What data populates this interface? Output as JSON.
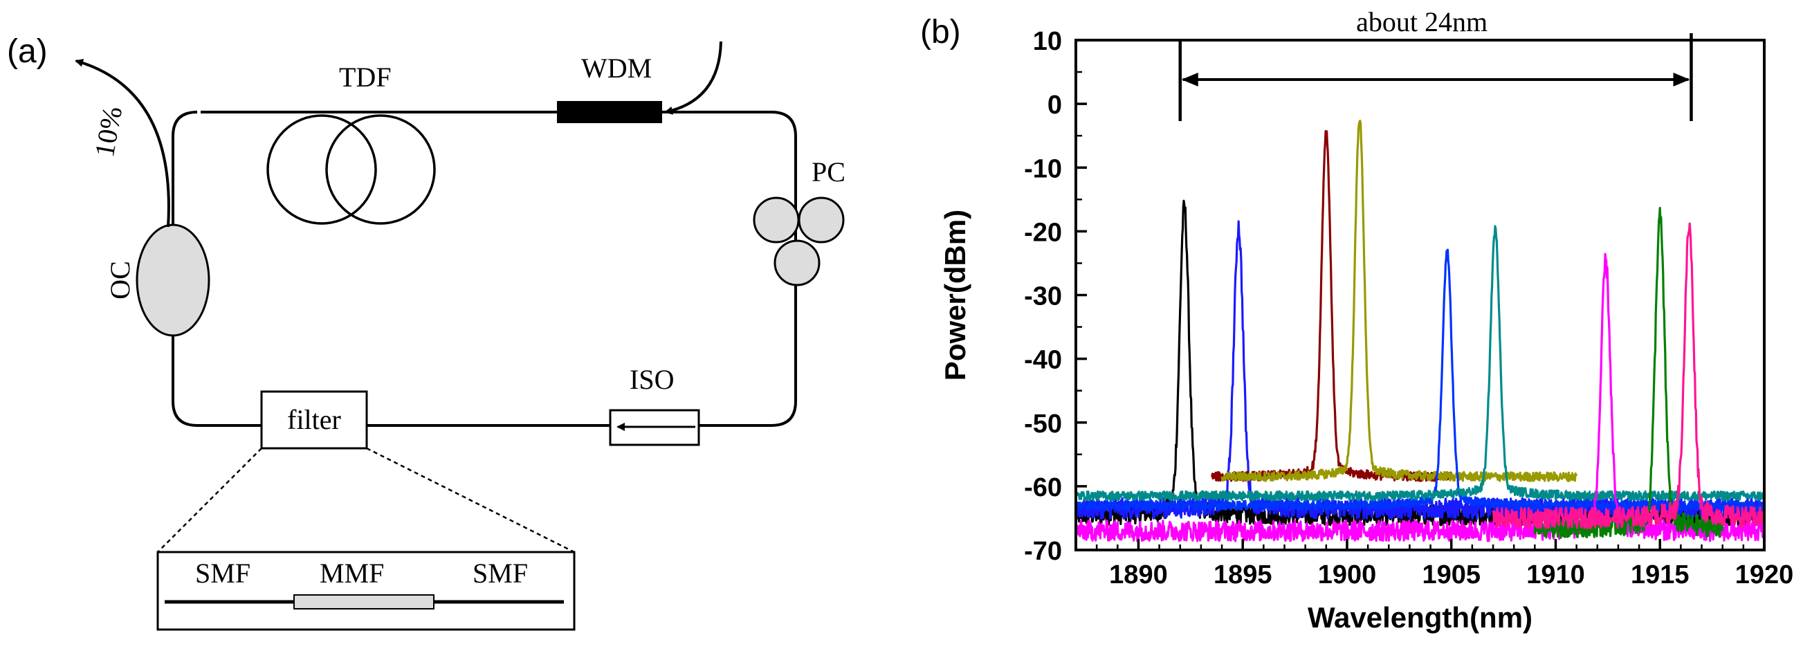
{
  "panel_a": {
    "tag": "(a)",
    "labels": {
      "tdf": "TDF",
      "wdm": "WDM",
      "pc": "PC",
      "oc": "OC",
      "output": "10%",
      "iso": "ISO",
      "filter": "filter",
      "smf_left": "SMF",
      "mmf": "MMF",
      "smf_right": "SMF"
    }
  },
  "panel_b": {
    "tag": "(b)",
    "annotation": "about 24nm"
  },
  "chart_data": {
    "type": "line",
    "title": "",
    "xlabel": "Wavelength(nm)",
    "ylabel": "Power(dBm)",
    "xlim": [
      1887,
      1920
    ],
    "ylim": [
      -70,
      10
    ],
    "xticks": [
      1890,
      1895,
      1900,
      1905,
      1910,
      1915,
      1920
    ],
    "yticks": [
      10,
      0,
      -10,
      -20,
      -30,
      -40,
      -50,
      -60,
      -70
    ],
    "grid": false,
    "annotation_span": [
      1892,
      1916.5
    ],
    "series": [
      {
        "color": "#000000",
        "peak_x": 1892.2,
        "peak_y": -18,
        "baseline": -64.5,
        "range": [
          1887,
          1920
        ]
      },
      {
        "color": "#1a1aff",
        "peak_x": 1894.8,
        "peak_y": -21,
        "baseline": -63.5,
        "range": [
          1887,
          1920
        ]
      },
      {
        "color": "#8b0000",
        "peak_x": 1899.0,
        "peak_y": -6,
        "baseline": -58.5,
        "range": [
          1893.5,
          1905
        ]
      },
      {
        "color": "#999900",
        "peak_x": 1900.6,
        "peak_y": -4,
        "baseline": -58.5,
        "range": [
          1894,
          1911
        ]
      },
      {
        "color": "#0033ff",
        "peak_x": 1904.8,
        "peak_y": -25,
        "baseline": -63,
        "range": [
          1887,
          1920
        ]
      },
      {
        "color": "#008b8b",
        "peak_x": 1907.1,
        "peak_y": -21.5,
        "baseline": -61.5,
        "range": [
          1887,
          1920
        ]
      },
      {
        "color": "#ff00ff",
        "peak_x": 1912.4,
        "peak_y": -26.5,
        "baseline": -67,
        "range": [
          1887,
          1920
        ]
      },
      {
        "color": "#008000",
        "peak_x": 1915.0,
        "peak_y": -19.5,
        "baseline": -66.5,
        "range": [
          1909,
          1918
        ]
      },
      {
        "color": "#ff1493",
        "peak_x": 1916.4,
        "peak_y": -21,
        "baseline": -65,
        "range": [
          1907,
          1920
        ]
      }
    ]
  }
}
